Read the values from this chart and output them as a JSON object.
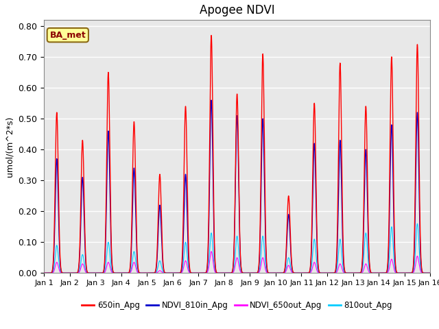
{
  "title": "Apogee NDVI",
  "ylabel": "umol/(m^2*s)",
  "xlim": [
    0,
    15
  ],
  "ylim": [
    0,
    0.82
  ],
  "yticks": [
    0.0,
    0.1,
    0.2,
    0.3,
    0.4,
    0.5,
    0.6,
    0.7,
    0.8
  ],
  "xtick_labels": [
    "Jan 1",
    "Jan 2",
    "Jan 3",
    "Jan 4",
    "Jan 5",
    "Jan 6",
    "Jan 7",
    "Jan 8",
    "Jan 9",
    "Jan 10",
    "Jan 11",
    "Jan 12",
    "Jan 13",
    "Jan 14",
    "Jan 15",
    "Jan 16"
  ],
  "bg_color": "#e8e8e8",
  "annotation_text": "BA_met",
  "annotation_box_color": "#ffff99",
  "annotation_text_color": "#8b0000",
  "colors": {
    "650in_Apg": "#ff0000",
    "NDVI_810in_Apg": "#0000cc",
    "NDVI_650out_Apg": "#ff00ff",
    "810out_Apg": "#00ccff"
  },
  "legend_labels": [
    "650in_Apg",
    "NDVI_810in_Apg",
    "NDVI_650out_Apg",
    "810out_Apg"
  ],
  "day_peaks": {
    "650in_Apg": [
      0.52,
      0.43,
      0.65,
      0.49,
      0.32,
      0.54,
      0.77,
      0.58,
      0.71,
      0.25,
      0.55,
      0.68,
      0.54,
      0.7,
      0.74
    ],
    "NDVI_810in_Apg": [
      0.37,
      0.31,
      0.46,
      0.34,
      0.22,
      0.32,
      0.56,
      0.51,
      0.5,
      0.19,
      0.42,
      0.43,
      0.4,
      0.48,
      0.52
    ],
    "NDVI_650out_Apg": [
      0.035,
      0.03,
      0.035,
      0.035,
      0.008,
      0.04,
      0.07,
      0.05,
      0.05,
      0.025,
      0.035,
      0.03,
      0.03,
      0.045,
      0.055
    ],
    "810out_Apg": [
      0.09,
      0.06,
      0.1,
      0.07,
      0.04,
      0.1,
      0.13,
      0.12,
      0.12,
      0.05,
      0.11,
      0.11,
      0.13,
      0.15,
      0.16
    ]
  },
  "sigma": 0.06,
  "n_points": 3000
}
